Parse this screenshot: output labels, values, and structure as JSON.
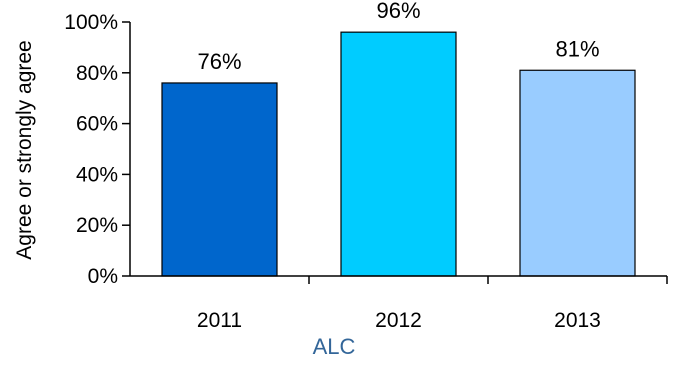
{
  "chart_data": {
    "type": "bar",
    "categories": [
      "2011",
      "2012",
      "2013"
    ],
    "values": [
      76,
      96,
      81
    ],
    "data_labels": [
      "76%",
      "96%",
      "81%"
    ],
    "ylabel": "Agree or strongly agree",
    "xlabel": "ALC",
    "ylim": [
      0,
      100
    ],
    "yticks": [
      0,
      20,
      40,
      60,
      80,
      100
    ],
    "ytick_labels": [
      "0%",
      "20%",
      "40%",
      "60%",
      "80%",
      "100%"
    ],
    "grid": false,
    "legend": "none",
    "colors": [
      "#0066CC",
      "#00CCFF",
      "#99CCFF"
    ],
    "label_color": "#336699"
  }
}
